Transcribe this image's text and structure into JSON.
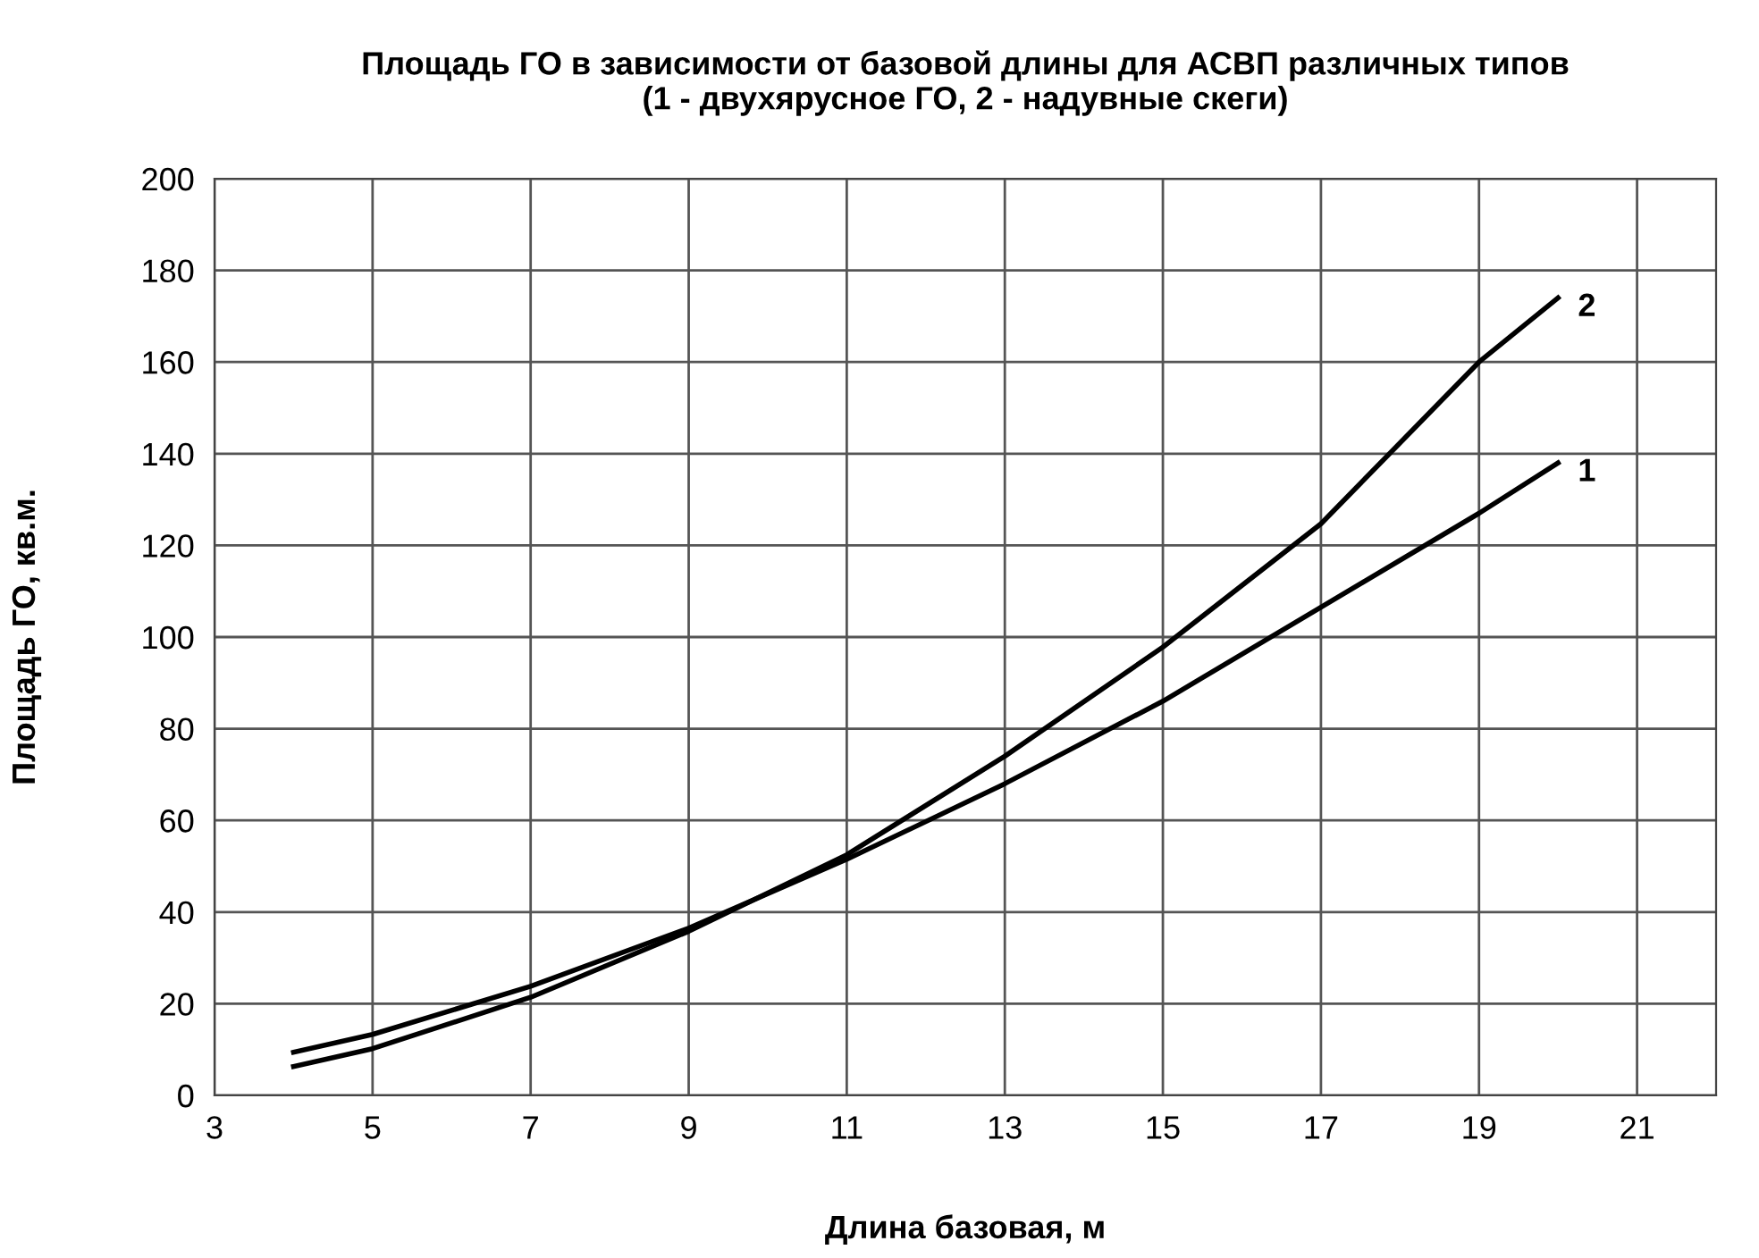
{
  "chart_data": {
    "type": "line",
    "title": "Площадь ГО в зависимости от базовой длины для АСВП различных типов\n(1 - двухярусное ГО, 2 - надувные скеги)",
    "xlabel": "Длина базовая, м",
    "ylabel": "Площадь ГО, кв.м.",
    "x": [
      4,
      5,
      7,
      9,
      11,
      13,
      15,
      17,
      19,
      20
    ],
    "series": [
      {
        "name": "1",
        "color": "#000000",
        "values": [
          9.4,
          13.3,
          23.8,
          36.5,
          51.5,
          68,
          86,
          106.5,
          127,
          138
        ]
      },
      {
        "name": "2",
        "color": "#000000",
        "values": [
          6.3,
          10.2,
          21.4,
          35.8,
          52.5,
          74,
          97.8,
          124.7,
          160,
          174
        ]
      }
    ],
    "xlim": [
      3,
      22
    ],
    "ylim": [
      0,
      200
    ],
    "xticks": [
      3,
      5,
      7,
      9,
      11,
      13,
      15,
      17,
      19,
      21
    ],
    "yticks": [
      0,
      20,
      40,
      60,
      80,
      100,
      120,
      140,
      160,
      180,
      200
    ],
    "grid": true,
    "legend": false,
    "marker": "none",
    "line_style": "solid"
  }
}
